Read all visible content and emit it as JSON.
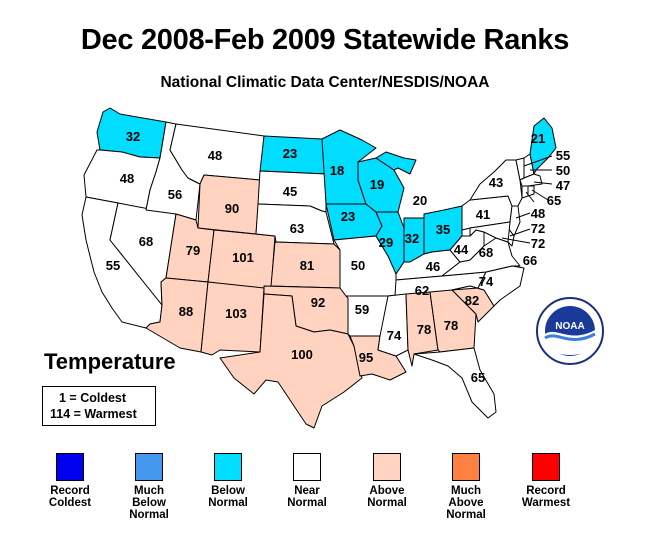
{
  "title": "Dec 2008-Feb 2009 Statewide Ranks",
  "subtitle": "National Climatic Data Center/NESDIS/NOAA",
  "panel_label": "Temperature",
  "scale": {
    "coldest": "1 = Coldest",
    "warmest": "114 = Warmest"
  },
  "logo_text": "NOAA",
  "category_colors": {
    "record_coldest": "#0000ee",
    "much_below": "#4499ee",
    "below": "#00ddff",
    "near": "#ffffff",
    "above": "#ffd3c0",
    "much_above": "#ff8040",
    "record_warmest": "#ff0000"
  },
  "legend": [
    {
      "key": "record_coldest",
      "lines": [
        "Record",
        "Coldest"
      ]
    },
    {
      "key": "much_below",
      "lines": [
        "Much",
        "Below",
        "Normal"
      ]
    },
    {
      "key": "below",
      "lines": [
        "Below",
        "Normal"
      ]
    },
    {
      "key": "near",
      "lines": [
        "Near",
        "Normal"
      ]
    },
    {
      "key": "above",
      "lines": [
        "Above",
        "Normal"
      ]
    },
    {
      "key": "much_above",
      "lines": [
        "Much",
        "Above",
        "Normal"
      ]
    },
    {
      "key": "record_warmest",
      "lines": [
        "Record",
        "Warmest"
      ]
    }
  ],
  "ranks": {
    "WA": {
      "rank": "32",
      "category": "below"
    },
    "OR": {
      "rank": "48",
      "category": "near"
    },
    "CA": {
      "rank": "55",
      "category": "near"
    },
    "ID": {
      "rank": "56",
      "category": "near"
    },
    "NV": {
      "rank": "68",
      "category": "near"
    },
    "MT": {
      "rank": "48",
      "category": "near"
    },
    "WY": {
      "rank": "90",
      "category": "above"
    },
    "UT": {
      "rank": "79",
      "category": "above"
    },
    "CO": {
      "rank": "101",
      "category": "above"
    },
    "AZ": {
      "rank": "88",
      "category": "above"
    },
    "NM": {
      "rank": "103",
      "category": "above"
    },
    "ND": {
      "rank": "23",
      "category": "below"
    },
    "SD": {
      "rank": "45",
      "category": "near"
    },
    "NE": {
      "rank": "63",
      "category": "near"
    },
    "KS": {
      "rank": "81",
      "category": "above"
    },
    "OK": {
      "rank": "92",
      "category": "above"
    },
    "TX": {
      "rank": "100",
      "category": "above"
    },
    "MN": {
      "rank": "18",
      "category": "below"
    },
    "IA": {
      "rank": "23",
      "category": "below"
    },
    "MO": {
      "rank": "50",
      "category": "near"
    },
    "AR": {
      "rank": "59",
      "category": "near"
    },
    "LA": {
      "rank": "95",
      "category": "above"
    },
    "WI": {
      "rank": "19",
      "category": "below"
    },
    "IL": {
      "rank": "29",
      "category": "below"
    },
    "MI": {
      "rank": "20",
      "category": "below"
    },
    "IN": {
      "rank": "32",
      "category": "below"
    },
    "OH": {
      "rank": "35",
      "category": "below"
    },
    "KY": {
      "rank": "46",
      "category": "near"
    },
    "TN": {
      "rank": "62",
      "category": "near"
    },
    "MS": {
      "rank": "74",
      "category": "near"
    },
    "AL": {
      "rank": "78",
      "category": "above"
    },
    "GA": {
      "rank": "78",
      "category": "above"
    },
    "FL": {
      "rank": "65",
      "category": "near"
    },
    "SC": {
      "rank": "82",
      "category": "above"
    },
    "NC": {
      "rank": "74",
      "category": "near"
    },
    "VA": {
      "rank": "68",
      "category": "near"
    },
    "WV": {
      "rank": "44",
      "category": "near"
    },
    "PA": {
      "rank": "41",
      "category": "near"
    },
    "NY": {
      "rank": "43",
      "category": "near"
    },
    "ME": {
      "rank": "21",
      "category": "below"
    },
    "VT": {
      "rank": "55",
      "category": "near"
    },
    "NH": {
      "rank": "50",
      "category": "near"
    },
    "MA": {
      "rank": "47",
      "category": "near"
    },
    "CT": {
      "rank": "65",
      "category": "near"
    },
    "NJ": {
      "rank": "48",
      "category": "near"
    },
    "DE": {
      "rank": "72",
      "category": "near"
    },
    "MD": {
      "rank": "72",
      "category": "near"
    },
    "RI": {
      "rank": "66",
      "category": "near"
    }
  }
}
